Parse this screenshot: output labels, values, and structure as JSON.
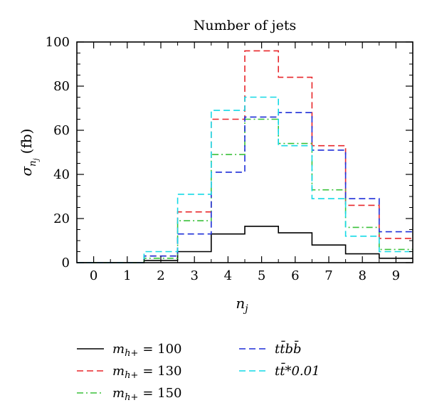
{
  "chart_data": {
    "type": "step",
    "title": "Number of jets",
    "xlabel": "n_j",
    "ylabel": "σ_{n_j} (fb)",
    "ylabel_unit": "(fb)",
    "xlim": [
      -0.5,
      9.5
    ],
    "ylim": [
      0,
      100
    ],
    "x_ticks": [
      "0",
      "1",
      "2",
      "3",
      "4",
      "5",
      "6",
      "7",
      "8",
      "9"
    ],
    "y_ticks": [
      "0",
      "20",
      "40",
      "60",
      "80",
      "100"
    ],
    "categories": [
      0,
      1,
      2,
      3,
      4,
      5,
      6,
      7,
      8,
      9
    ],
    "series": [
      {
        "name": "m_{h+} = 100",
        "label_value": "= 100",
        "color": "#000000",
        "dash": "solid",
        "values": [
          0,
          0,
          1,
          5,
          13,
          16.5,
          13.5,
          8,
          4,
          2
        ]
      },
      {
        "name": "m_{h+} = 130",
        "label_value": "= 130",
        "color": "#e8262a",
        "dash": "dashed",
        "values": [
          0,
          0,
          3,
          23,
          65,
          96,
          84,
          53,
          26,
          11
        ]
      },
      {
        "name": "m_{h+} = 150",
        "label_value": "= 150",
        "color": "#3ac13a",
        "dash": "dashdot",
        "values": [
          0,
          0,
          2,
          19,
          49,
          65,
          54,
          33,
          16,
          6
        ]
      },
      {
        "name": "tt̄bb̄",
        "color": "#1e2fd8",
        "dash": "dashed",
        "values": [
          0,
          0,
          3,
          13,
          41,
          66,
          68,
          51,
          29,
          14
        ]
      },
      {
        "name": "tt̄*0.01",
        "color": "#14d9e6",
        "dash": "dashed",
        "values": [
          0,
          0,
          5,
          31,
          69,
          75,
          53,
          29,
          12,
          5
        ]
      }
    ]
  },
  "legend": {
    "m_symbol": "m",
    "m_subscript": "h+"
  }
}
